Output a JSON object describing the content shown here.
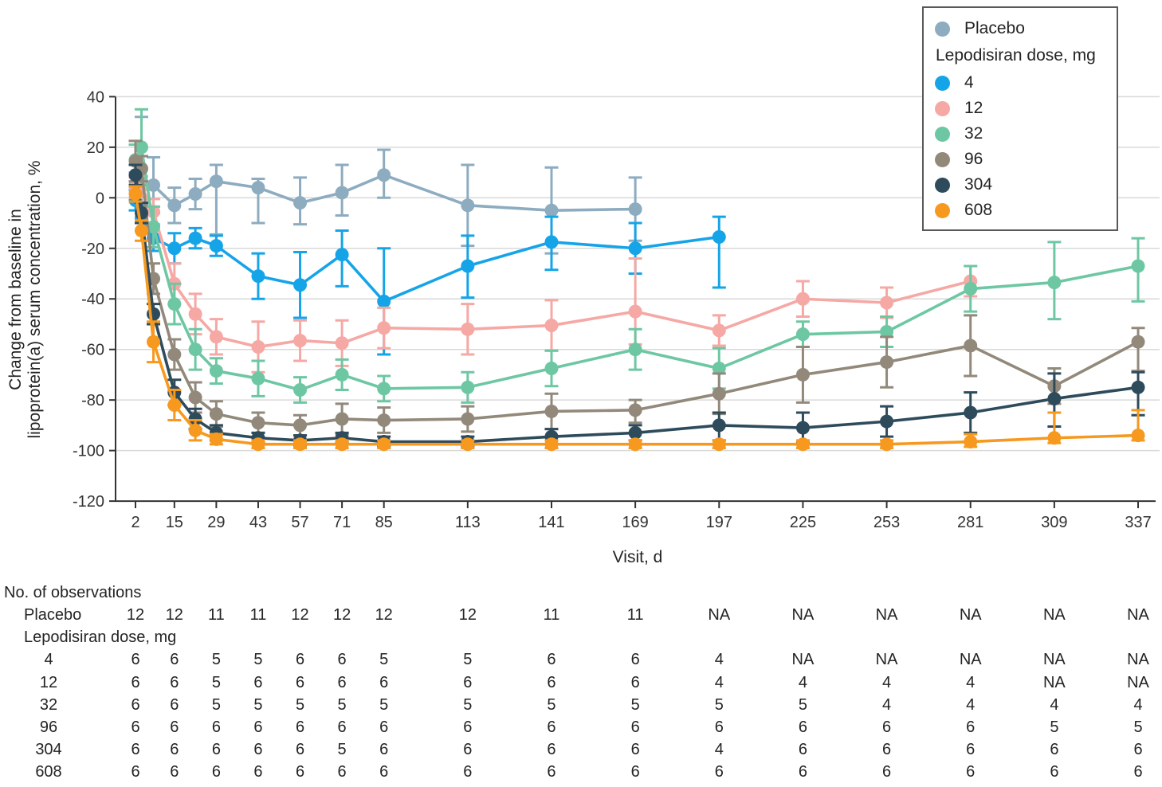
{
  "figure": {
    "xlabel": "Visit, d",
    "ylabel_line1": "Change from baseline in",
    "ylabel_line2": "lipoprotein(a) serum concentration, %"
  },
  "legend": {
    "placebo_label": "Placebo",
    "title": "Lepodisiran dose, mg",
    "doses": [
      "4",
      "12",
      "32",
      "96",
      "304",
      "608"
    ]
  },
  "observations": {
    "header": "No. of observations",
    "rows": [
      {
        "label": "Placebo",
        "kind": "arm",
        "values": [
          "12",
          "12",
          "11",
          "11",
          "12",
          "12",
          "12",
          "12",
          "11",
          "11",
          "NA",
          "NA",
          "NA",
          "NA",
          "NA",
          "NA"
        ]
      },
      {
        "label": "Lepodisiran dose, mg",
        "kind": "group",
        "values": []
      },
      {
        "label": "4",
        "kind": "dose",
        "values": [
          "6",
          "6",
          "5",
          "5",
          "6",
          "6",
          "5",
          "5",
          "6",
          "6",
          "4",
          "NA",
          "NA",
          "NA",
          "NA",
          "NA"
        ]
      },
      {
        "label": "12",
        "kind": "dose",
        "values": [
          "6",
          "6",
          "5",
          "6",
          "6",
          "6",
          "6",
          "6",
          "6",
          "6",
          "4",
          "4",
          "4",
          "4",
          "NA",
          "NA"
        ]
      },
      {
        "label": "32",
        "kind": "dose",
        "values": [
          "6",
          "6",
          "5",
          "5",
          "5",
          "5",
          "5",
          "5",
          "5",
          "5",
          "5",
          "5",
          "4",
          "4",
          "4",
          "4"
        ]
      },
      {
        "label": "96",
        "kind": "dose",
        "values": [
          "6",
          "6",
          "6",
          "6",
          "6",
          "6",
          "6",
          "6",
          "6",
          "6",
          "6",
          "6",
          "6",
          "6",
          "5",
          "5"
        ]
      },
      {
        "label": "304",
        "kind": "dose",
        "values": [
          "6",
          "6",
          "6",
          "6",
          "6",
          "5",
          "6",
          "6",
          "6",
          "6",
          "4",
          "6",
          "6",
          "6",
          "6",
          "6"
        ]
      },
      {
        "label": "608",
        "kind": "dose",
        "values": [
          "6",
          "6",
          "6",
          "6",
          "6",
          "6",
          "6",
          "6",
          "6",
          "6",
          "6",
          "6",
          "6",
          "6",
          "6",
          "6"
        ]
      }
    ]
  },
  "chart_data": {
    "type": "line",
    "title": "",
    "xlabel": "Visit, d",
    "ylabel": "Change from baseline in lipoprotein(a) serum concentration, %",
    "x_ticks": [
      2,
      15,
      29,
      43,
      57,
      71,
      85,
      113,
      141,
      169,
      197,
      225,
      253,
      281,
      309,
      337
    ],
    "y_ticks": [
      40,
      20,
      0,
      -20,
      -40,
      -60,
      -80,
      -100,
      -120
    ],
    "xlim": [
      2,
      337
    ],
    "ylim": [
      -120,
      40
    ],
    "grid": "horizontal",
    "legend_position": "top-right",
    "point_format": "[visit_day, value_pct, err_up, err_down]",
    "series": [
      {
        "name": "Placebo",
        "color": "#8DACC0",
        "points": [
          [
            2,
            5,
            5,
            5
          ],
          [
            4,
            6,
            26,
            9
          ],
          [
            8,
            5,
            11,
            11
          ],
          [
            15,
            -3,
            7,
            7
          ],
          [
            22,
            1.5,
            6,
            6
          ],
          [
            29,
            6.5,
            6.5,
            21
          ],
          [
            43,
            4,
            3.5,
            14
          ],
          [
            57,
            -2,
            10,
            8.5
          ],
          [
            71,
            2,
            11,
            9
          ],
          [
            85,
            9,
            10,
            9
          ],
          [
            113,
            -3,
            16,
            16
          ],
          [
            141,
            -5,
            17,
            17
          ],
          [
            169,
            -4.5,
            12.5,
            12.5
          ]
        ]
      },
      {
        "name": "4",
        "color": "#16A4E8",
        "points": [
          [
            2,
            -1,
            4,
            4
          ],
          [
            4,
            -8,
            5,
            5
          ],
          [
            8,
            -16,
            5,
            5
          ],
          [
            15,
            -20,
            6,
            6
          ],
          [
            22,
            -16,
            4,
            4
          ],
          [
            29,
            -19,
            4,
            4
          ],
          [
            43,
            -31,
            9,
            9
          ],
          [
            57,
            -34.5,
            13,
            13
          ],
          [
            71,
            -22.5,
            9.5,
            12.5
          ],
          [
            85,
            -41,
            21,
            21
          ],
          [
            113,
            -27,
            12,
            12.5
          ],
          [
            141,
            -17.5,
            10,
            11
          ],
          [
            169,
            -20,
            10,
            10
          ],
          [
            197,
            -15.5,
            8,
            20
          ]
        ]
      },
      {
        "name": "12",
        "color": "#F5A8A4",
        "points": [
          [
            2,
            4,
            4,
            4
          ],
          [
            4,
            4.5,
            4,
            4
          ],
          [
            8,
            -5.5,
            5,
            5
          ],
          [
            15,
            -34,
            8,
            8
          ],
          [
            22,
            -46,
            8,
            8
          ],
          [
            29,
            -55,
            7,
            7
          ],
          [
            43,
            -59,
            10,
            10
          ],
          [
            57,
            -56.5,
            8,
            8
          ],
          [
            71,
            -57.5,
            9,
            9
          ],
          [
            85,
            -51.5,
            8,
            8
          ],
          [
            113,
            -52,
            10,
            10
          ],
          [
            141,
            -50.5,
            10,
            10
          ],
          [
            169,
            -45,
            21,
            13
          ],
          [
            197,
            -52.5,
            6,
            6
          ],
          [
            225,
            -40,
            7,
            7
          ],
          [
            253,
            -41.5,
            6,
            6
          ],
          [
            281,
            -33,
            6,
            6
          ]
        ]
      },
      {
        "name": "32",
        "color": "#6EC7A3",
        "points": [
          [
            2,
            15,
            6,
            6
          ],
          [
            4,
            20,
            15,
            15
          ],
          [
            8,
            -11.5,
            8,
            8
          ],
          [
            15,
            -42,
            8,
            8
          ],
          [
            22,
            -60,
            8,
            8
          ],
          [
            29,
            -68.5,
            5,
            5
          ],
          [
            43,
            -71.5,
            7,
            7
          ],
          [
            57,
            -76,
            5,
            5
          ],
          [
            71,
            -70,
            6,
            6
          ],
          [
            85,
            -75.5,
            5,
            5
          ],
          [
            113,
            -75,
            6,
            6
          ],
          [
            141,
            -67.5,
            7,
            7
          ],
          [
            169,
            -60,
            8,
            8
          ],
          [
            197,
            -67.5,
            8,
            8
          ],
          [
            225,
            -54,
            5,
            5
          ],
          [
            253,
            -53,
            6,
            6
          ],
          [
            281,
            -36,
            9,
            9
          ],
          [
            309,
            -33.5,
            16,
            14.5
          ],
          [
            337,
            -27,
            11,
            14
          ]
        ]
      },
      {
        "name": "96",
        "color": "#92897B",
        "points": [
          [
            2,
            14.5,
            8,
            8
          ],
          [
            4,
            11.5,
            5,
            5
          ],
          [
            8,
            -32,
            6,
            6
          ],
          [
            15,
            -62,
            6,
            6
          ],
          [
            22,
            -79,
            6,
            6
          ],
          [
            29,
            -85.5,
            5,
            5
          ],
          [
            43,
            -89,
            4,
            4
          ],
          [
            57,
            -90,
            4,
            4
          ],
          [
            71,
            -87.5,
            6,
            6
          ],
          [
            85,
            -88,
            5,
            5
          ],
          [
            113,
            -87.5,
            5,
            5
          ],
          [
            141,
            -84.5,
            7,
            7
          ],
          [
            169,
            -84,
            4,
            5
          ],
          [
            197,
            -77.5,
            8,
            8
          ],
          [
            225,
            -70,
            11,
            11
          ],
          [
            253,
            -65,
            10,
            10
          ],
          [
            281,
            -58.5,
            12,
            12
          ],
          [
            309,
            -74.5,
            7,
            7
          ],
          [
            337,
            -57,
            5.5,
            11.5
          ]
        ]
      },
      {
        "name": "304",
        "color": "#2E4B5C",
        "points": [
          [
            2,
            9,
            4,
            4
          ],
          [
            4,
            -6,
            4,
            4
          ],
          [
            8,
            -46,
            4,
            4
          ],
          [
            15,
            -77,
            5,
            5
          ],
          [
            22,
            -87.5,
            4,
            4
          ],
          [
            29,
            -93,
            3,
            3
          ],
          [
            43,
            -95,
            2,
            2
          ],
          [
            57,
            -96,
            2,
            2
          ],
          [
            71,
            -95,
            2,
            2
          ],
          [
            85,
            -96.5,
            2,
            2
          ],
          [
            113,
            -96.5,
            2,
            2
          ],
          [
            141,
            -94.5,
            3,
            3
          ],
          [
            169,
            -93,
            3,
            3
          ],
          [
            197,
            -90,
            5,
            6
          ],
          [
            225,
            -91,
            6,
            6
          ],
          [
            253,
            -88.5,
            6,
            6
          ],
          [
            281,
            -85,
            8,
            8
          ],
          [
            309,
            -79.5,
            10,
            11
          ],
          [
            337,
            -75,
            6,
            11
          ]
        ]
      },
      {
        "name": "608",
        "color": "#F6991E",
        "points": [
          [
            2,
            1.5,
            3,
            3
          ],
          [
            4,
            -13,
            4,
            4
          ],
          [
            8,
            -57,
            8,
            8
          ],
          [
            15,
            -82,
            6,
            6
          ],
          [
            22,
            -92,
            4,
            4
          ],
          [
            29,
            -95.5,
            2,
            2
          ],
          [
            43,
            -97.5,
            1.5,
            1.5
          ],
          [
            57,
            -97.5,
            1.5,
            1.5
          ],
          [
            71,
            -97.5,
            1.5,
            1.5
          ],
          [
            85,
            -97.5,
            1.5,
            1.5
          ],
          [
            113,
            -97.5,
            1.5,
            1.5
          ],
          [
            141,
            -97.5,
            1.5,
            1.5
          ],
          [
            169,
            -97.5,
            1.5,
            1.5
          ],
          [
            197,
            -97.5,
            1.5,
            1.5
          ],
          [
            225,
            -97.5,
            1.5,
            1.5
          ],
          [
            253,
            -97.5,
            1.5,
            1.5
          ],
          [
            281,
            -96.5,
            3,
            2
          ],
          [
            309,
            -95,
            10,
            2
          ],
          [
            337,
            -94,
            10,
            2
          ]
        ]
      }
    ]
  },
  "colors": {
    "axis": "#333333",
    "grid": "#D9D9D9",
    "text": "#242424",
    "legend_border": "#58595B"
  }
}
